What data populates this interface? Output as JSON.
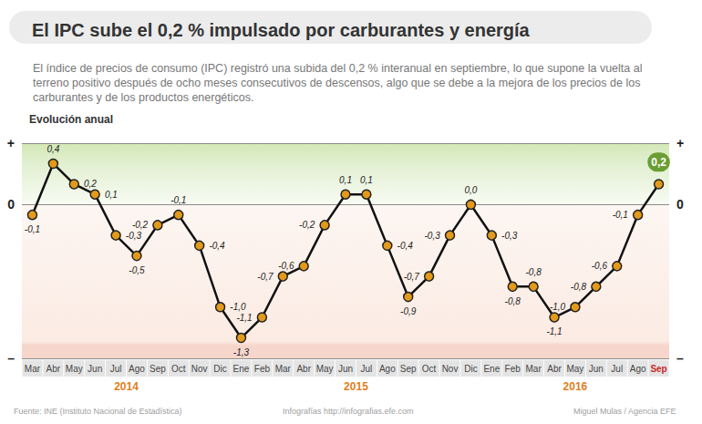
{
  "chart_data": {
    "type": "line",
    "title": "El IPC sube el 0,2 % impulsado por carburantes y energía",
    "subtitle": "El índice de precios de consumo (IPC) registró una subida del 0,2 % interanual en septiembre, lo que supone la vuelta al terreno positivo después de ocho meses consecutivos de descensos, algo que se debe a la mejora de los precios de los carburantes y de los productos energéticos.",
    "ylabel": "Evolución anual",
    "source": "Fuente: INE (Instituto Nacional de Estadística)",
    "credits": [
      "Infografías http://infografias.efe.com",
      "Miguel Mulas / Agencia EFE"
    ],
    "categories": [
      "Mar",
      "Abr",
      "May",
      "Jun",
      "Jul",
      "Ago",
      "Sep",
      "Oct",
      "Nov",
      "Dic",
      "Ene",
      "Feb",
      "Mar",
      "Abr",
      "May",
      "Jun",
      "Jul",
      "Ago",
      "Sep",
      "Oct",
      "Nov",
      "Dic",
      "Ene",
      "Feb",
      "Mar",
      "Abr",
      "May",
      "Jun",
      "Jul",
      "Ago",
      "Sep"
    ],
    "year_groups": [
      {
        "label": "2014",
        "count": 10
      },
      {
        "label": "2015",
        "count": 12
      },
      {
        "label": "2016",
        "count": 9
      }
    ],
    "values": [
      -0.1,
      0.4,
      0.2,
      0.1,
      -0.3,
      -0.5,
      -0.2,
      -0.1,
      -0.4,
      -1.0,
      -1.3,
      -1.1,
      -0.7,
      -0.6,
      -0.2,
      0.1,
      0.1,
      -0.4,
      -0.9,
      -0.7,
      -0.3,
      0.0,
      -0.3,
      -0.8,
      -0.8,
      -1.1,
      -1.0,
      -0.8,
      -0.6,
      -0.1,
      0.2
    ],
    "value_labels": [
      "-0,1",
      "0,4",
      "0,2",
      "0,1",
      "-0,3",
      "-0,5",
      "-0,2",
      "-0,1",
      "-0,4",
      "-1,0",
      "-1,3",
      "-1,1",
      "-0,7",
      "-0,6",
      "-0,2",
      "0,1",
      "0,1",
      "-0,4",
      "-0,9",
      "-0,7",
      "-0,3",
      "0,0",
      "-0,3",
      "-0,8",
      "-0,8",
      "-1,1",
      "-1,0",
      "-0,8",
      "-0,6",
      "-0,1",
      "0,2"
    ],
    "color": "#111111",
    "marker": "circle",
    "data_labels": true,
    "ylim": [
      -1.5,
      0.6
    ],
    "yticks": [
      {
        "value": -1.5,
        "label": "–"
      },
      0,
      {
        "value": 0.6,
        "label": "+"
      }
    ],
    "grid": true
  }
}
